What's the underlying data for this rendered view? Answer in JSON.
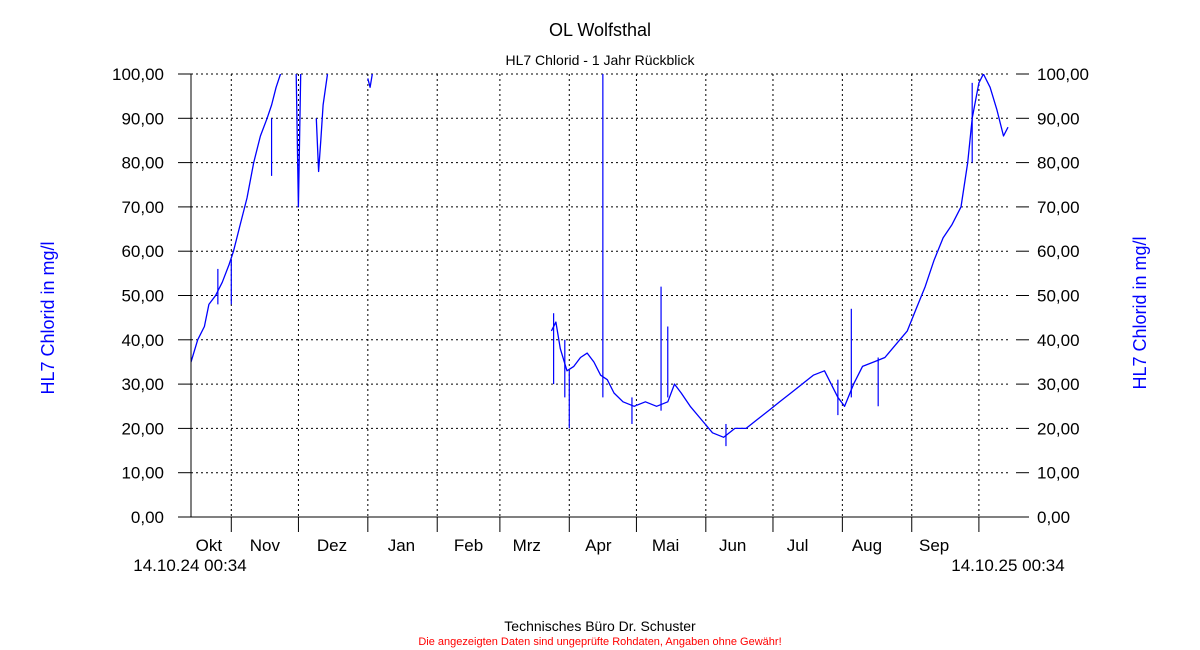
{
  "chart_data": {
    "type": "line",
    "title": "OL Wolfsthal",
    "subtitle": "HL7 Chlorid - 1 Jahr Rückblick",
    "ylabel_left": "HL7 Chlorid in mg/l",
    "ylabel_right": "HL7 Chlorid in mg/l",
    "ylim": [
      0,
      100
    ],
    "yticks": [
      "0,00",
      "10,00",
      "20,00",
      "30,00",
      "40,00",
      "50,00",
      "60,00",
      "70,00",
      "80,00",
      "90,00",
      "100,00"
    ],
    "x_start_label": "14.10.24 00:34",
    "x_end_label": "14.10.25 00:34",
    "x_range": [
      "2024-10-14",
      "2025-10-14"
    ],
    "month_labels": [
      {
        "label": "Okt",
        "date": "2024-10-22"
      },
      {
        "label": "Nov",
        "date": "2024-11-16"
      },
      {
        "label": "Dez",
        "date": "2024-12-16"
      },
      {
        "label": "Jan",
        "date": "2025-01-16"
      },
      {
        "label": "Feb",
        "date": "2025-02-15"
      },
      {
        "label": "Mrz",
        "date": "2025-03-13"
      },
      {
        "label": "Apr",
        "date": "2025-04-14"
      },
      {
        "label": "Mai",
        "date": "2025-05-14"
      },
      {
        "label": "Jun",
        "date": "2025-06-13"
      },
      {
        "label": "Jul",
        "date": "2025-07-12"
      },
      {
        "label": "Aug",
        "date": "2025-08-12"
      },
      {
        "label": "Sep",
        "date": "2025-09-11"
      }
    ],
    "vertical_gridlines": [
      "2024-11-01",
      "2024-12-01",
      "2025-01-01",
      "2025-02-01",
      "2025-03-01",
      "2025-04-01",
      "2025-05-01",
      "2025-06-01",
      "2025-07-01",
      "2025-08-01",
      "2025-09-01",
      "2025-10-01"
    ],
    "grid": true,
    "series": [
      {
        "color": "#0000ff",
        "segments": [
          [
            [
              "2024-10-14",
              35
            ],
            [
              "2024-10-17",
              40
            ],
            [
              "2024-10-20",
              43
            ],
            [
              "2024-10-22",
              48
            ],
            [
              "2024-10-25",
              50
            ],
            [
              "2024-10-28",
              53
            ],
            [
              "2024-10-31",
              57
            ],
            [
              "2024-11-02",
              60
            ],
            [
              "2024-11-05",
              66
            ],
            [
              "2024-11-08",
              72
            ],
            [
              "2024-11-11",
              80
            ],
            [
              "2024-11-14",
              86
            ],
            [
              "2024-11-17",
              90
            ],
            [
              "2024-11-19",
              93
            ],
            [
              "2024-11-21",
              97
            ],
            [
              "2024-11-23",
              100
            ]
          ],
          [
            [
              "2024-11-30",
              100
            ],
            [
              "2024-12-01",
              70
            ],
            [
              "2024-12-02",
              100
            ]
          ],
          [
            [
              "2024-12-09",
              90
            ],
            [
              "2024-12-10",
              78
            ],
            [
              "2024-12-11",
              85
            ],
            [
              "2024-12-12",
              93
            ],
            [
              "2024-12-14",
              100
            ]
          ],
          [
            [
              "2025-01-01",
              99
            ],
            [
              "2025-01-02",
              97
            ],
            [
              "2025-01-03",
              100
            ]
          ],
          [
            [
              "2025-03-24",
              42
            ],
            [
              "2025-03-26",
              44
            ],
            [
              "2025-03-28",
              38
            ],
            [
              "2025-03-31",
              33
            ],
            [
              "2025-04-03",
              34
            ],
            [
              "2025-04-06",
              36
            ],
            [
              "2025-04-09",
              37
            ],
            [
              "2025-04-12",
              35
            ],
            [
              "2025-04-15",
              32
            ],
            [
              "2025-04-18",
              31
            ],
            [
              "2025-04-21",
              28
            ],
            [
              "2025-04-25",
              26
            ],
            [
              "2025-04-30",
              25
            ],
            [
              "2025-05-05",
              26
            ],
            [
              "2025-05-10",
              25
            ],
            [
              "2025-05-15",
              26
            ],
            [
              "2025-05-18",
              30
            ],
            [
              "2025-05-21",
              28
            ],
            [
              "2025-05-25",
              25
            ],
            [
              "2025-05-30",
              22
            ],
            [
              "2025-06-04",
              19
            ],
            [
              "2025-06-09",
              18
            ],
            [
              "2025-06-14",
              20
            ],
            [
              "2025-06-19",
              20
            ],
            [
              "2025-06-24",
              22
            ],
            [
              "2025-06-29",
              24
            ],
            [
              "2025-07-04",
              26
            ],
            [
              "2025-07-09",
              28
            ],
            [
              "2025-07-14",
              30
            ],
            [
              "2025-07-19",
              32
            ],
            [
              "2025-07-24",
              33
            ],
            [
              "2025-07-30",
              27
            ],
            [
              "2025-08-02",
              25
            ],
            [
              "2025-08-06",
              30
            ],
            [
              "2025-08-10",
              34
            ],
            [
              "2025-08-15",
              35
            ],
            [
              "2025-08-20",
              36
            ],
            [
              "2025-08-25",
              39
            ],
            [
              "2025-08-30",
              42
            ],
            [
              "2025-09-03",
              47
            ],
            [
              "2025-09-07",
              52
            ],
            [
              "2025-09-11",
              58
            ],
            [
              "2025-09-15",
              63
            ],
            [
              "2025-09-19",
              66
            ],
            [
              "2025-09-23",
              70
            ],
            [
              "2025-09-26",
              80
            ],
            [
              "2025-09-28",
              90
            ],
            [
              "2025-10-01",
              98
            ],
            [
              "2025-10-03",
              100
            ],
            [
              "2025-10-06",
              97
            ],
            [
              "2025-10-09",
              92
            ],
            [
              "2025-10-12",
              86
            ],
            [
              "2025-10-14",
              88
            ]
          ]
        ],
        "spikes": [
          [
            "2024-10-26",
            48,
            56
          ],
          [
            "2024-11-01",
            48,
            58
          ],
          [
            "2024-11-19",
            77,
            90
          ],
          [
            "2025-03-25",
            30,
            46
          ],
          [
            "2025-03-30",
            27,
            40
          ],
          [
            "2025-04-01",
            20,
            33
          ],
          [
            "2025-04-16",
            27,
            100
          ],
          [
            "2025-05-12",
            24,
            52
          ],
          [
            "2025-05-15",
            27,
            43
          ],
          [
            "2025-04-29",
            21,
            27
          ],
          [
            "2025-06-10",
            16,
            21
          ],
          [
            "2025-07-30",
            23,
            31
          ],
          [
            "2025-08-05",
            27,
            47
          ],
          [
            "2025-08-17",
            25,
            36
          ],
          [
            "2025-09-28",
            80,
            98
          ]
        ]
      }
    ]
  },
  "footer": {
    "company": "Technisches Büro Dr. Schuster",
    "disclaimer": "Die angezeigten Daten sind ungeprüfte Rohdaten, Angaben ohne Gewähr!"
  }
}
